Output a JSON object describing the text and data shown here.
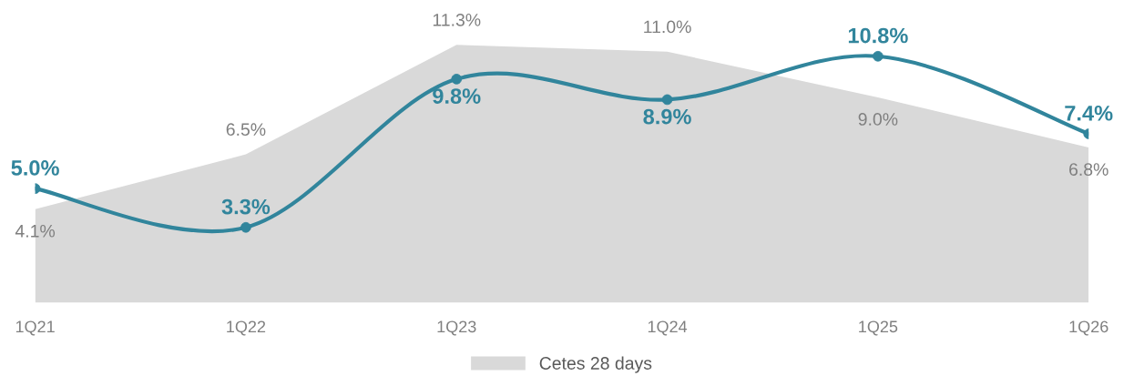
{
  "chart_data": {
    "type": "line",
    "categories": [
      "1Q21",
      "1Q22",
      "1Q23",
      "1Q24",
      "1Q25",
      "1Q26"
    ],
    "series": [
      {
        "name": "Cetes 28 days",
        "type": "area",
        "color": "#d9d9d9",
        "value_labels": [
          "4.1%",
          "6.5%",
          "11.3%",
          "11.0%",
          "9.0%",
          "6.8%"
        ],
        "values": [
          4.1,
          6.5,
          11.3,
          11.0,
          9.0,
          6.8
        ]
      },
      {
        "color": "#31859c",
        "marker": "circle",
        "value_labels": [
          "5.0%",
          "3.3%",
          "9.8%",
          "8.9%",
          "10.8%",
          "7.4%"
        ],
        "values": [
          5.0,
          3.3,
          9.8,
          8.9,
          10.8,
          7.4
        ]
      }
    ],
    "legend": "bottom",
    "grid": false
  }
}
